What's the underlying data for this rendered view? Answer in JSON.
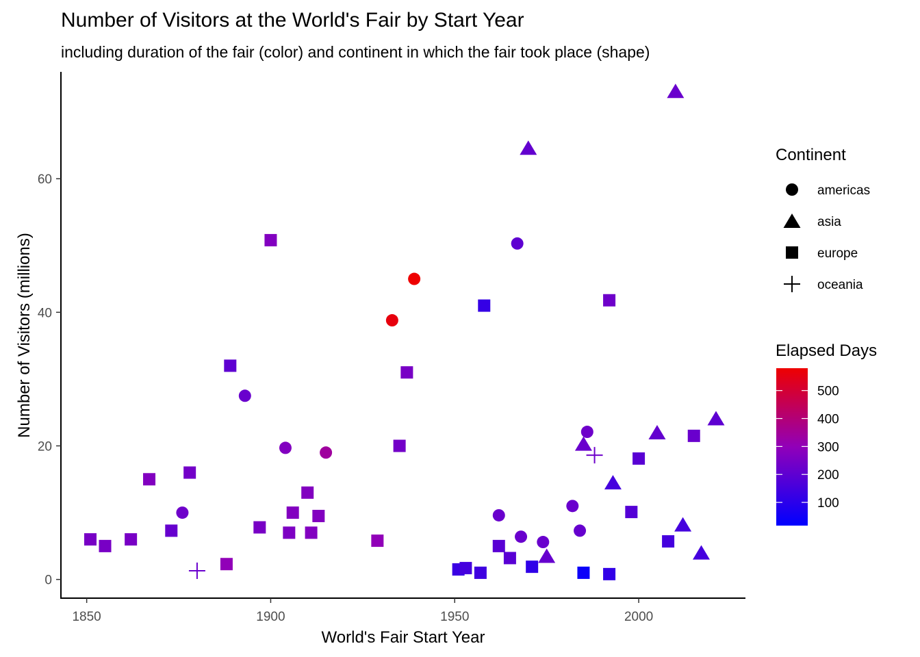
{
  "chart_data": {
    "type": "scatter",
    "title": "Number of Visitors at the World's Fair by Start Year",
    "subtitle": "including duration of the fair (color) and continent in which the fair took place (shape)",
    "xlabel": "World's Fair Start Year",
    "ylabel": "Number of Visitors (millions)",
    "xlim": [
      1843,
      2029
    ],
    "ylim": [
      -2.8,
      76
    ],
    "x_ticks": [
      "1850",
      "1900",
      "1950",
      "2000"
    ],
    "y_ticks": [
      "0",
      "20",
      "40",
      "60"
    ],
    "grid": false,
    "legend_position": "right",
    "shape_legend": {
      "title": "Continent",
      "entries": [
        {
          "key": "americas",
          "label": "americas",
          "shape": "circle"
        },
        {
          "key": "asia",
          "label": "asia",
          "shape": "triangle"
        },
        {
          "key": "europe",
          "label": "europe",
          "shape": "square"
        },
        {
          "key": "oceania",
          "label": "oceania",
          "shape": "plus"
        }
      ]
    },
    "color_legend": {
      "title": "Elapsed Days",
      "min": 17,
      "max": 580,
      "ticks": [
        "100",
        "200",
        "300",
        "400",
        "500"
      ],
      "low_color": "#0000ff",
      "high_color": "#ee0000"
    },
    "points": [
      {
        "x": 1851,
        "y": 6.0,
        "continent": "europe",
        "days": 250
      },
      {
        "x": 1855,
        "y": 5.0,
        "continent": "europe",
        "days": 250
      },
      {
        "x": 1862,
        "y": 6.0,
        "continent": "europe",
        "days": 250
      },
      {
        "x": 1867,
        "y": 15.0,
        "continent": "europe",
        "days": 270
      },
      {
        "x": 1873,
        "y": 7.3,
        "continent": "europe",
        "days": 215
      },
      {
        "x": 1876,
        "y": 10.0,
        "continent": "americas",
        "days": 230
      },
      {
        "x": 1878,
        "y": 16.0,
        "continent": "europe",
        "days": 240
      },
      {
        "x": 1880,
        "y": 1.3,
        "continent": "oceania",
        "days": 220
      },
      {
        "x": 1888,
        "y": 2.3,
        "continent": "europe",
        "days": 300
      },
      {
        "x": 1889,
        "y": 32.0,
        "continent": "europe",
        "days": 200
      },
      {
        "x": 1893,
        "y": 27.5,
        "continent": "americas",
        "days": 220
      },
      {
        "x": 1897,
        "y": 7.8,
        "continent": "europe",
        "days": 250
      },
      {
        "x": 1900,
        "y": 50.8,
        "continent": "europe",
        "days": 270
      },
      {
        "x": 1904,
        "y": 19.7,
        "continent": "americas",
        "days": 270
      },
      {
        "x": 1905,
        "y": 7.0,
        "continent": "europe",
        "days": 260
      },
      {
        "x": 1906,
        "y": 10.0,
        "continent": "europe",
        "days": 270
      },
      {
        "x": 1910,
        "y": 13.0,
        "continent": "europe",
        "days": 270
      },
      {
        "x": 1911,
        "y": 7.0,
        "continent": "europe",
        "days": 270
      },
      {
        "x": 1913,
        "y": 9.5,
        "continent": "europe",
        "days": 270
      },
      {
        "x": 1915,
        "y": 19.0,
        "continent": "americas",
        "days": 340
      },
      {
        "x": 1929,
        "y": 5.8,
        "continent": "europe",
        "days": 300
      },
      {
        "x": 1933,
        "y": 38.8,
        "continent": "americas",
        "days": 560
      },
      {
        "x": 1935,
        "y": 20.0,
        "continent": "europe",
        "days": 240
      },
      {
        "x": 1937,
        "y": 31.0,
        "continent": "europe",
        "days": 250
      },
      {
        "x": 1939,
        "y": 45.0,
        "continent": "americas",
        "days": 580
      },
      {
        "x": 1951,
        "y": 1.5,
        "continent": "europe",
        "days": 130
      },
      {
        "x": 1953,
        "y": 1.7,
        "continent": "europe",
        "days": 150
      },
      {
        "x": 1957,
        "y": 1.0,
        "continent": "europe",
        "days": 140
      },
      {
        "x": 1958,
        "y": 41.0,
        "continent": "europe",
        "days": 120
      },
      {
        "x": 1962,
        "y": 9.6,
        "continent": "americas",
        "days": 220
      },
      {
        "x": 1962,
        "y": 5.0,
        "continent": "europe",
        "days": 190
      },
      {
        "x": 1965,
        "y": 3.2,
        "continent": "europe",
        "days": 190
      },
      {
        "x": 1967,
        "y": 50.3,
        "continent": "americas",
        "days": 200
      },
      {
        "x": 1968,
        "y": 6.4,
        "continent": "americas",
        "days": 220
      },
      {
        "x": 1970,
        "y": 64.6,
        "continent": "asia",
        "days": 210
      },
      {
        "x": 1971,
        "y": 1.9,
        "continent": "europe",
        "days": 110
      },
      {
        "x": 1974,
        "y": 5.6,
        "continent": "americas",
        "days": 220
      },
      {
        "x": 1975,
        "y": 3.5,
        "continent": "asia",
        "days": 215
      },
      {
        "x": 1982,
        "y": 11.0,
        "continent": "americas",
        "days": 220
      },
      {
        "x": 1984,
        "y": 7.3,
        "continent": "americas",
        "days": 215
      },
      {
        "x": 1985,
        "y": 1.0,
        "continent": "europe",
        "days": 40
      },
      {
        "x": 1985,
        "y": 20.3,
        "continent": "asia",
        "days": 220
      },
      {
        "x": 1986,
        "y": 22.1,
        "continent": "americas",
        "days": 230
      },
      {
        "x": 1988,
        "y": 18.6,
        "continent": "oceania",
        "days": 230
      },
      {
        "x": 1992,
        "y": 41.8,
        "continent": "europe",
        "days": 230
      },
      {
        "x": 1992,
        "y": 0.8,
        "continent": "europe",
        "days": 115
      },
      {
        "x": 1993,
        "y": 14.5,
        "continent": "asia",
        "days": 150
      },
      {
        "x": 1998,
        "y": 10.1,
        "continent": "europe",
        "days": 180
      },
      {
        "x": 2000,
        "y": 18.1,
        "continent": "europe",
        "days": 190
      },
      {
        "x": 2005,
        "y": 22.0,
        "continent": "asia",
        "days": 210
      },
      {
        "x": 2008,
        "y": 5.7,
        "continent": "europe",
        "days": 150
      },
      {
        "x": 2010,
        "y": 73.1,
        "continent": "asia",
        "days": 220
      },
      {
        "x": 2012,
        "y": 8.2,
        "continent": "asia",
        "days": 150
      },
      {
        "x": 2015,
        "y": 21.5,
        "continent": "europe",
        "days": 220
      },
      {
        "x": 2017,
        "y": 4.0,
        "continent": "asia",
        "days": 150
      },
      {
        "x": 2021,
        "y": 24.1,
        "continent": "asia",
        "days": 200
      }
    ]
  }
}
